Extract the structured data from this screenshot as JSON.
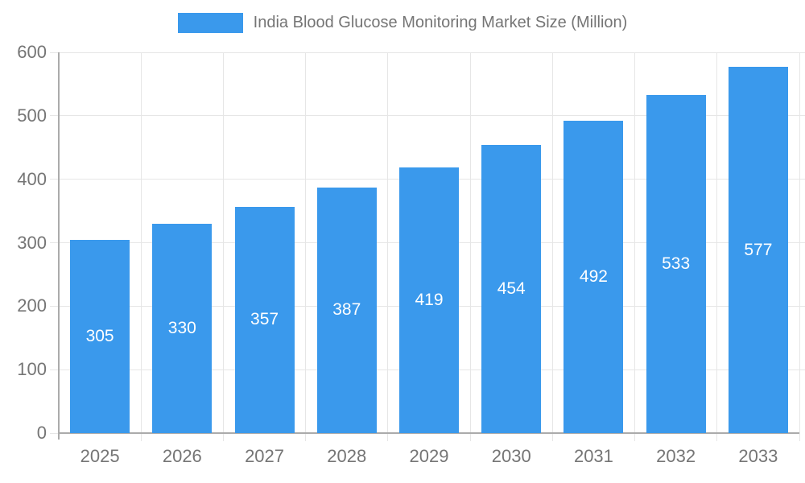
{
  "legend": {
    "label": "India Blood Glucose Monitoring Market Size (Million)"
  },
  "chart_data": {
    "type": "bar",
    "title": "India Blood Glucose Monitoring Market Size (Million)",
    "categories": [
      "2025",
      "2026",
      "2027",
      "2028",
      "2029",
      "2030",
      "2031",
      "2032",
      "2033"
    ],
    "values": [
      305,
      330,
      357,
      387,
      419,
      454,
      492,
      533,
      577
    ],
    "xlabel": "",
    "ylabel": "",
    "ylim": [
      0,
      600
    ],
    "ytick_step": 100,
    "yticks": [
      "0",
      "100",
      "200",
      "300",
      "400",
      "500",
      "600"
    ],
    "grid": true,
    "legend_position": "top",
    "colors": {
      "bar": "#3A99EC",
      "bar_label": "#ffffff",
      "axis_text": "#757575",
      "grid_line": "#E6E6E6",
      "axis_line": "#ABABAB"
    }
  }
}
